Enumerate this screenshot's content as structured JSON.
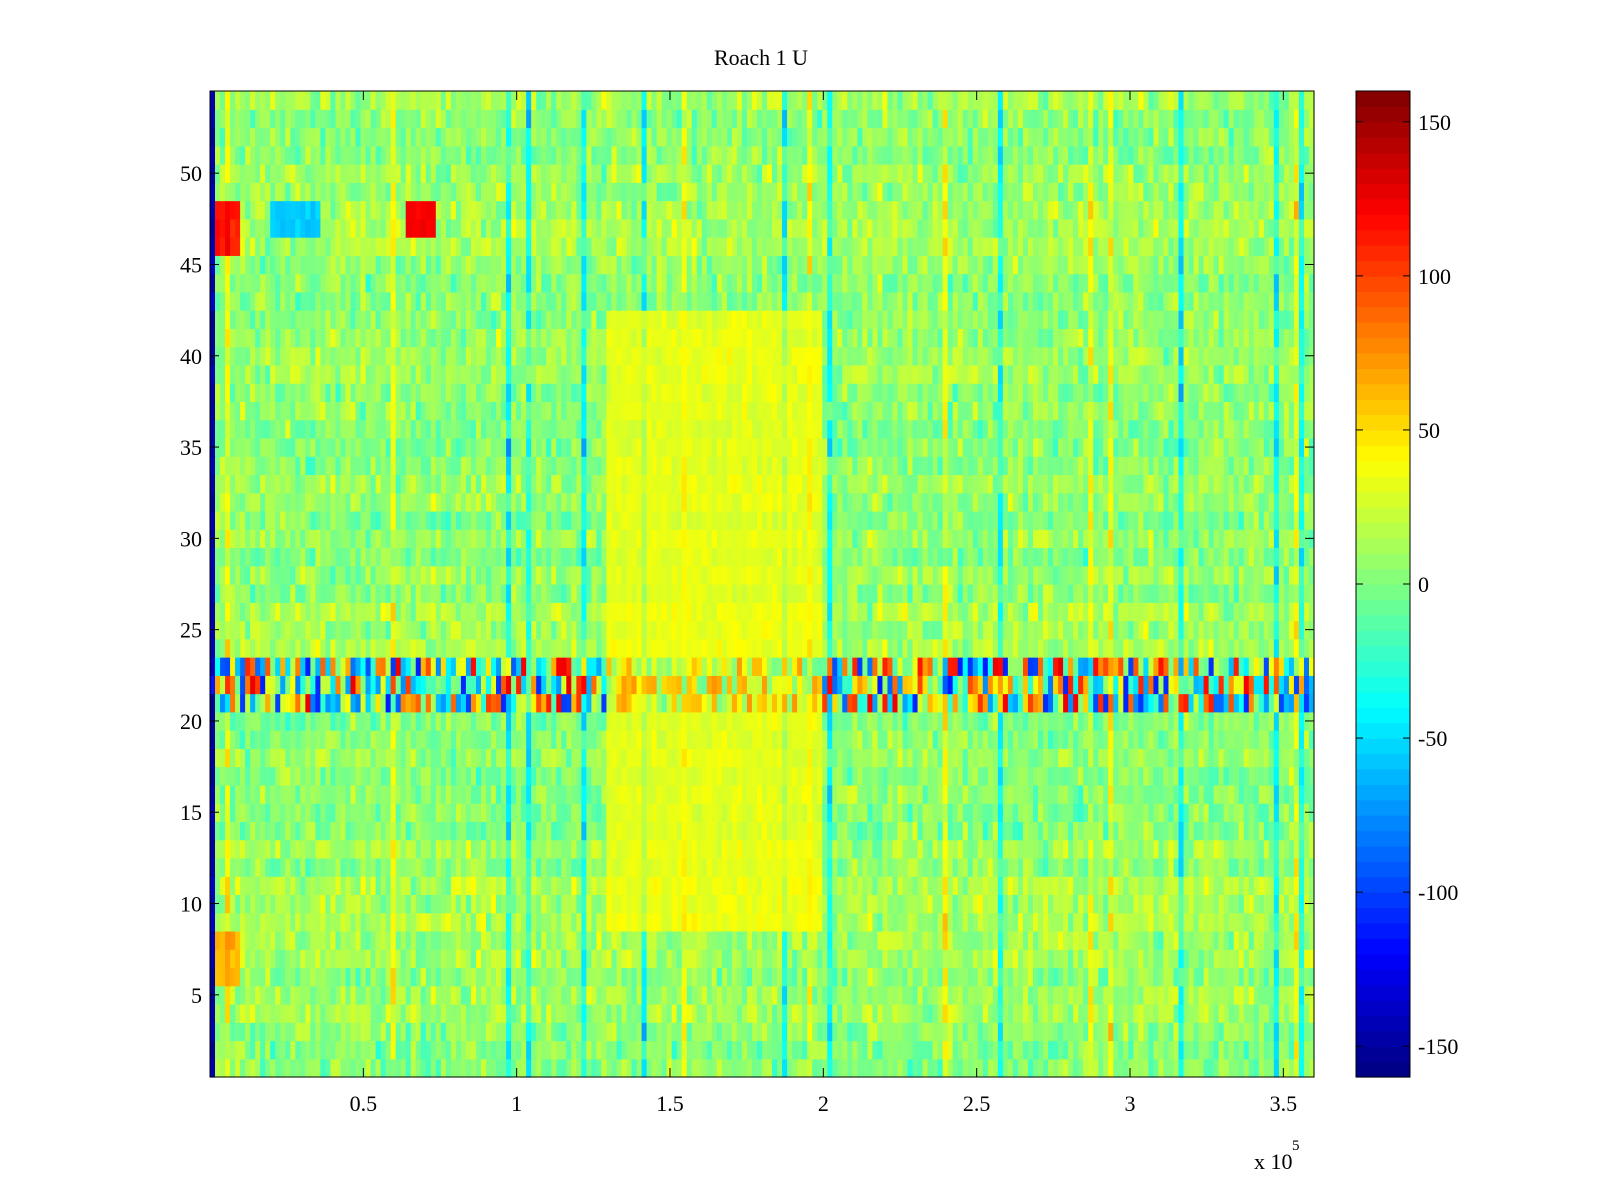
{
  "chart_data": {
    "type": "heatmap",
    "title": "Roach 1 U",
    "xlabel": "",
    "ylabel": "",
    "x_exponent_label": "x 10",
    "x_exponent_power": "5",
    "xlim": [
      0,
      360000
    ],
    "ylim": [
      0.5,
      54.5
    ],
    "rows": 54,
    "x_ticks": [
      {
        "value": 50000,
        "label": "0.5"
      },
      {
        "value": 100000,
        "label": "1"
      },
      {
        "value": 150000,
        "label": "1.5"
      },
      {
        "value": 200000,
        "label": "2"
      },
      {
        "value": 250000,
        "label": "2.5"
      },
      {
        "value": 300000,
        "label": "3"
      },
      {
        "value": 350000,
        "label": "3.5"
      }
    ],
    "y_ticks": [
      {
        "value": 5,
        "label": "5"
      },
      {
        "value": 10,
        "label": "10"
      },
      {
        "value": 15,
        "label": "15"
      },
      {
        "value": 20,
        "label": "20"
      },
      {
        "value": 25,
        "label": "25"
      },
      {
        "value": 30,
        "label": "30"
      },
      {
        "value": 35,
        "label": "35"
      },
      {
        "value": 40,
        "label": "40"
      },
      {
        "value": 45,
        "label": "45"
      },
      {
        "value": 50,
        "label": "50"
      }
    ],
    "colorbar": {
      "colormap": "jet",
      "clim": [
        -160,
        160
      ],
      "ticks": [
        {
          "value": 150,
          "label": "150"
        },
        {
          "value": 100,
          "label": "100"
        },
        {
          "value": 50,
          "label": "50"
        },
        {
          "value": 0,
          "label": "0"
        },
        {
          "value": -50,
          "label": "-50"
        },
        {
          "value": -100,
          "label": "-100"
        },
        {
          "value": -150,
          "label": "-150"
        }
      ]
    },
    "background_level": 8,
    "features": [
      {
        "rows": [
          21,
          23
        ],
        "x_range": [
          0,
          360000
        ],
        "kind": "high-variance band",
        "amplitude": 120
      },
      {
        "rows": [
          47,
          48
        ],
        "x_range": [
          64000,
          74000
        ],
        "kind": "hot patch",
        "value": 120
      },
      {
        "rows": [
          47,
          48
        ],
        "x_range": [
          20000,
          36000
        ],
        "kind": "cold patch",
        "value": -60
      },
      {
        "rows": [
          46,
          48
        ],
        "x_range": [
          2000,
          9000
        ],
        "kind": "hot patch",
        "value": 110
      },
      {
        "rows": [
          6,
          8
        ],
        "x_range": [
          2000,
          9000
        ],
        "kind": "warm patch",
        "value": 60
      },
      {
        "rows": [
          9,
          42
        ],
        "x_range": [
          130000,
          200000
        ],
        "kind": "warm region",
        "value": 30
      },
      {
        "rows": [
          1,
          54
        ],
        "x_range": [
          0,
          2000
        ],
        "kind": "edge artifact",
        "value": -150
      }
    ]
  }
}
